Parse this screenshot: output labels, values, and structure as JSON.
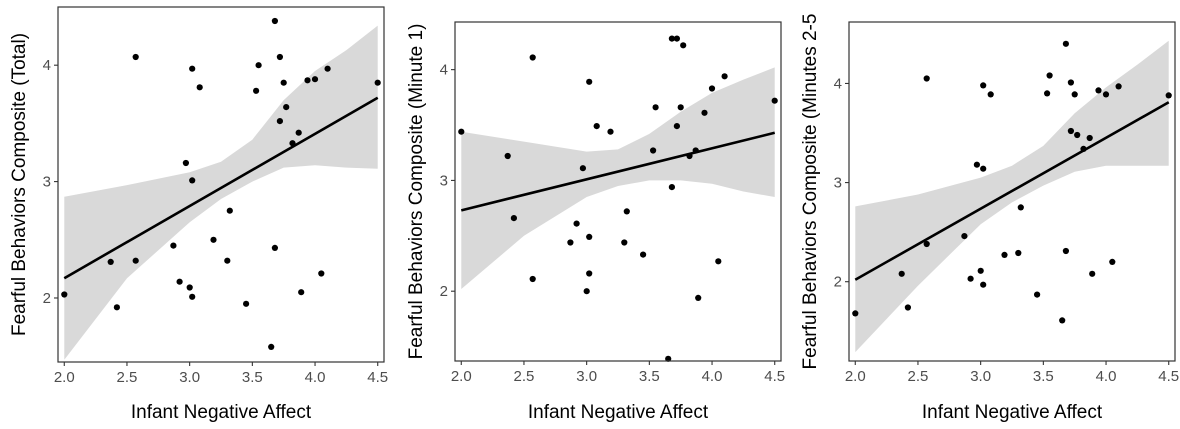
{
  "chart_data": [
    {
      "type": "scatter",
      "xlabel": "Infant Negative Affect",
      "ylabel": "Fearful Behaviors Composite (Total)",
      "xlim": [
        1.95,
        4.55
      ],
      "ylim": [
        1.45,
        4.5
      ],
      "xticks": [
        "2.0",
        "2.5",
        "3.0",
        "3.5",
        "4.0",
        "4.5"
      ],
      "xtick_values": [
        2.0,
        2.5,
        3.0,
        3.5,
        4.0,
        4.5
      ],
      "yticks": [
        "2",
        "3",
        "4"
      ],
      "ytick_values": [
        2,
        3,
        4
      ],
      "points": [
        [
          2.0,
          2.03
        ],
        [
          2.37,
          2.31
        ],
        [
          2.42,
          1.92
        ],
        [
          2.57,
          4.07
        ],
        [
          2.57,
          2.32
        ],
        [
          2.87,
          2.45
        ],
        [
          2.92,
          2.14
        ],
        [
          2.97,
          3.16
        ],
        [
          3.0,
          2.09
        ],
        [
          3.02,
          3.97
        ],
        [
          3.02,
          3.01
        ],
        [
          3.02,
          2.01
        ],
        [
          3.08,
          3.81
        ],
        [
          3.19,
          2.5
        ],
        [
          3.3,
          2.32
        ],
        [
          3.32,
          2.75
        ],
        [
          3.45,
          1.95
        ],
        [
          3.53,
          3.78
        ],
        [
          3.55,
          4.0
        ],
        [
          3.65,
          1.58
        ],
        [
          3.68,
          4.38
        ],
        [
          3.68,
          2.43
        ],
        [
          3.72,
          4.07
        ],
        [
          3.72,
          3.52
        ],
        [
          3.75,
          3.85
        ],
        [
          3.77,
          3.64
        ],
        [
          3.82,
          3.33
        ],
        [
          3.87,
          3.42
        ],
        [
          3.89,
          2.05
        ],
        [
          3.94,
          3.87
        ],
        [
          4.0,
          3.88
        ],
        [
          4.05,
          2.21
        ],
        [
          4.1,
          3.97
        ],
        [
          4.5,
          3.85
        ]
      ],
      "fit": {
        "x": [
          2.0,
          4.5
        ],
        "y": [
          2.17,
          3.72
        ]
      },
      "ci_upper": [
        [
          2.0,
          2.87
        ],
        [
          2.5,
          2.97
        ],
        [
          3.0,
          3.08
        ],
        [
          3.25,
          3.17
        ],
        [
          3.5,
          3.36
        ],
        [
          3.75,
          3.7
        ],
        [
          4.0,
          3.95
        ],
        [
          4.25,
          4.13
        ],
        [
          4.5,
          4.34
        ]
      ],
      "ci_lower": [
        [
          2.0,
          1.47
        ],
        [
          2.5,
          2.17
        ],
        [
          3.0,
          2.65
        ],
        [
          3.25,
          2.85
        ],
        [
          3.5,
          3.0
        ],
        [
          3.75,
          3.12
        ],
        [
          4.0,
          3.14
        ],
        [
          4.25,
          3.12
        ],
        [
          4.5,
          3.11
        ]
      ],
      "grid": false
    },
    {
      "type": "scatter",
      "xlabel": "Infant Negative Affect",
      "ylabel": "Fearful Behaviors Composite (Minute 1)",
      "xlim": [
        1.95,
        4.55
      ],
      "ylim": [
        1.37,
        4.43
      ],
      "xticks": [
        "2.0",
        "2.5",
        "3.0",
        "3.5",
        "4.0",
        "4.5"
      ],
      "xtick_values": [
        2.0,
        2.5,
        3.0,
        3.5,
        4.0,
        4.5
      ],
      "yticks": [
        "2",
        "3",
        "4"
      ],
      "ytick_values": [
        2,
        3,
        4
      ],
      "points": [
        [
          2.0,
          3.44
        ],
        [
          2.37,
          3.22
        ],
        [
          2.42,
          2.66
        ],
        [
          2.57,
          4.11
        ],
        [
          2.57,
          2.11
        ],
        [
          2.87,
          2.44
        ],
        [
          2.92,
          2.61
        ],
        [
          2.97,
          3.11
        ],
        [
          3.0,
          2.0
        ],
        [
          3.02,
          3.89
        ],
        [
          3.02,
          2.49
        ],
        [
          3.02,
          2.16
        ],
        [
          3.08,
          3.49
        ],
        [
          3.19,
          3.44
        ],
        [
          3.3,
          2.44
        ],
        [
          3.32,
          2.72
        ],
        [
          3.45,
          2.33
        ],
        [
          3.53,
          3.27
        ],
        [
          3.55,
          3.66
        ],
        [
          3.65,
          1.39
        ],
        [
          3.68,
          4.28
        ],
        [
          3.68,
          2.94
        ],
        [
          3.72,
          4.28
        ],
        [
          3.72,
          3.49
        ],
        [
          3.75,
          3.66
        ],
        [
          3.77,
          4.22
        ],
        [
          3.82,
          3.22
        ],
        [
          3.87,
          3.27
        ],
        [
          3.89,
          1.94
        ],
        [
          3.94,
          3.61
        ],
        [
          4.0,
          3.83
        ],
        [
          4.05,
          2.27
        ],
        [
          4.1,
          3.94
        ],
        [
          4.5,
          3.72
        ]
      ],
      "fit": {
        "x": [
          2.0,
          4.5
        ],
        "y": [
          2.73,
          3.43
        ]
      },
      "ci_upper": [
        [
          2.0,
          3.44
        ],
        [
          2.5,
          3.35
        ],
        [
          3.0,
          3.26
        ],
        [
          3.25,
          3.28
        ],
        [
          3.5,
          3.42
        ],
        [
          3.75,
          3.62
        ],
        [
          4.0,
          3.79
        ],
        [
          4.25,
          3.91
        ],
        [
          4.5,
          4.02
        ]
      ],
      "ci_lower": [
        [
          2.0,
          2.02
        ],
        [
          2.5,
          2.5
        ],
        [
          3.0,
          2.85
        ],
        [
          3.25,
          2.95
        ],
        [
          3.5,
          3.0
        ],
        [
          3.75,
          3.0
        ],
        [
          4.0,
          2.97
        ],
        [
          4.25,
          2.9
        ],
        [
          4.5,
          2.85
        ]
      ],
      "grid": false
    },
    {
      "type": "scatter",
      "xlabel": "Infant Negative Affect",
      "ylabel": "Fearful Behaviors Composite (Minutes 2-5",
      "xlim": [
        1.95,
        4.55
      ],
      "ylim": [
        1.2,
        4.62
      ],
      "xticks": [
        "2.0",
        "2.5",
        "3.0",
        "3.5",
        "4.0",
        "4.5"
      ],
      "xtick_values": [
        2.0,
        2.5,
        3.0,
        3.5,
        4.0,
        4.5
      ],
      "yticks": [
        "2",
        "3",
        "4"
      ],
      "ytick_values": [
        2,
        3,
        4
      ],
      "points": [
        [
          2.0,
          1.68
        ],
        [
          2.37,
          2.08
        ],
        [
          2.42,
          1.74
        ],
        [
          2.57,
          4.05
        ],
        [
          2.57,
          2.38
        ],
        [
          2.87,
          2.46
        ],
        [
          2.92,
          2.03
        ],
        [
          2.97,
          3.18
        ],
        [
          3.0,
          2.11
        ],
        [
          3.02,
          3.98
        ],
        [
          3.02,
          3.14
        ],
        [
          3.02,
          1.97
        ],
        [
          3.08,
          3.89
        ],
        [
          3.19,
          2.27
        ],
        [
          3.3,
          2.29
        ],
        [
          3.32,
          2.75
        ],
        [
          3.45,
          1.87
        ],
        [
          3.53,
          3.9
        ],
        [
          3.55,
          4.08
        ],
        [
          3.65,
          1.61
        ],
        [
          3.68,
          4.4
        ],
        [
          3.68,
          2.31
        ],
        [
          3.72,
          4.01
        ],
        [
          3.72,
          3.52
        ],
        [
          3.75,
          3.89
        ],
        [
          3.77,
          3.48
        ],
        [
          3.82,
          3.34
        ],
        [
          3.87,
          3.45
        ],
        [
          3.89,
          2.08
        ],
        [
          3.94,
          3.93
        ],
        [
          4.0,
          3.89
        ],
        [
          4.05,
          2.2
        ],
        [
          4.1,
          3.97
        ],
        [
          4.5,
          3.88
        ]
      ],
      "fit": {
        "x": [
          2.0,
          4.5
        ],
        "y": [
          2.02,
          3.81
        ]
      },
      "ci_upper": [
        [
          2.0,
          2.76
        ],
        [
          2.5,
          2.88
        ],
        [
          3.0,
          3.05
        ],
        [
          3.25,
          3.17
        ],
        [
          3.5,
          3.37
        ],
        [
          3.75,
          3.7
        ],
        [
          4.0,
          3.96
        ],
        [
          4.25,
          4.19
        ],
        [
          4.5,
          4.43
        ]
      ],
      "ci_lower": [
        [
          2.0,
          1.29
        ],
        [
          2.5,
          1.96
        ],
        [
          3.0,
          2.58
        ],
        [
          3.25,
          2.8
        ],
        [
          3.5,
          2.97
        ],
        [
          3.75,
          3.11
        ],
        [
          4.0,
          3.17
        ],
        [
          4.25,
          3.17
        ],
        [
          4.5,
          3.17
        ]
      ],
      "grid": false
    }
  ],
  "colors": {
    "band": "#d9d9d9",
    "points": "#000000",
    "line": "#000000",
    "frame": "#333333",
    "tick_label": "#4d4d4d"
  }
}
